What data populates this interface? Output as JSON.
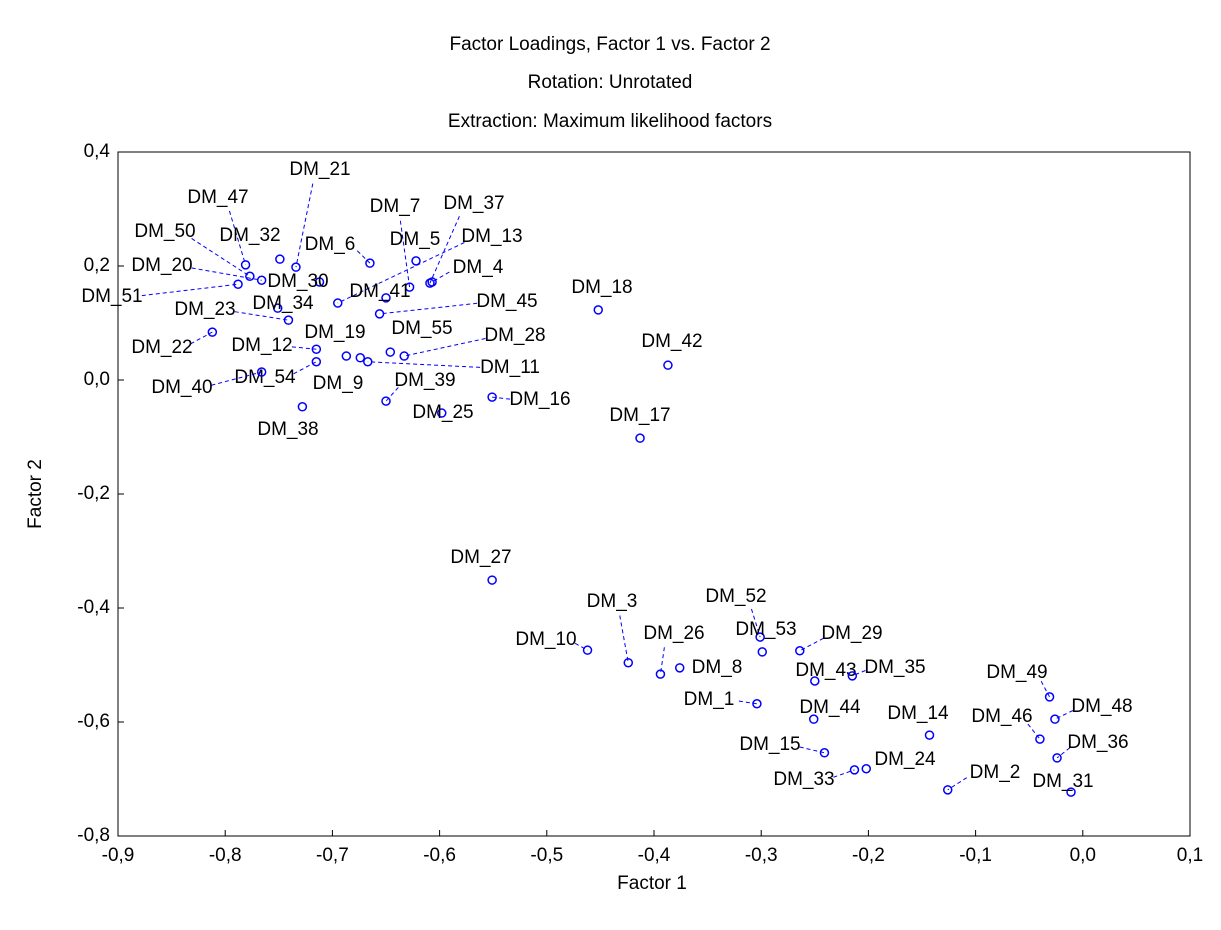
{
  "chart_data": {
    "type": "scatter",
    "title": "Factor Loadings, Factor 1 vs. Factor 2",
    "subtitle": [
      "Rotation: Unrotated",
      "Extraction: Maximum likelihood factors"
    ],
    "x_label": "Factor 1",
    "y_label": "Factor 2",
    "color": "#0000ff",
    "xlim": [
      -0.9,
      0.1
    ],
    "ylim": [
      -0.8,
      0.4
    ],
    "xticks": [
      {
        "value": -0.9,
        "label": "-0,9"
      },
      {
        "value": -0.8,
        "label": "-0,8"
      },
      {
        "value": -0.7,
        "label": "-0,7"
      },
      {
        "value": -0.6,
        "label": "-0,6"
      },
      {
        "value": -0.5,
        "label": "-0,5"
      },
      {
        "value": -0.4,
        "label": "-0,4"
      },
      {
        "value": -0.3,
        "label": "-0,3"
      },
      {
        "value": -0.2,
        "label": "-0,2"
      },
      {
        "value": -0.1,
        "label": "-0,1"
      },
      {
        "value": 0,
        "label": "0,0"
      },
      {
        "value": 0.1,
        "label": "0,1"
      }
    ],
    "yticks": [
      {
        "value": 0.4,
        "label": "0,4"
      },
      {
        "value": 0.2,
        "label": "0,2"
      },
      {
        "value": 0,
        "label": "0,0"
      },
      {
        "value": -0.2,
        "label": "-0,2"
      },
      {
        "value": -0.4,
        "label": "-0,4"
      },
      {
        "value": -0.6,
        "label": "-0,6"
      },
      {
        "value": -0.8,
        "label": "-0,8"
      }
    ],
    "labels": [
      "DM_21",
      "DM_47",
      "DM_32",
      "DM_50",
      "DM_20",
      "DM_51",
      "DM_6",
      "DM_30",
      "DM_7",
      "DM_37",
      "DM_5",
      "DM_13",
      "DM_4",
      "DM_41",
      "DM_34",
      "DM_23",
      "DM_22",
      "DM_45",
      "DM_55",
      "DM_28",
      "DM_11",
      "DM_19",
      "DM_12",
      "DM_54",
      "DM_40",
      "DM_9",
      "DM_39",
      "DM_38",
      "DM_25",
      "DM_16",
      "DM_18",
      "DM_42",
      "DM_17",
      "DM_27",
      "DM_10",
      "DM_3",
      "DM_26",
      "DM_8",
      "DM_52",
      "DM_53",
      "DM_29",
      "DM_43",
      "DM_35",
      "DM_1",
      "DM_44",
      "DM_15",
      "DM_33",
      "DM_24",
      "DM_14",
      "DM_2",
      "DM_49",
      "DM_48",
      "DM_46",
      "DM_36",
      "DM_31"
    ],
    "x": [
      -0.734,
      -0.781,
      -0.749,
      -0.777,
      -0.766,
      -0.788,
      -0.665,
      -0.712,
      -0.628,
      -0.609,
      -0.622,
      -0.695,
      -0.607,
      -0.65,
      -0.751,
      -0.741,
      -0.812,
      -0.656,
      -0.646,
      -0.633,
      -0.667,
      -0.687,
      -0.715,
      -0.715,
      -0.766,
      -0.674,
      -0.65,
      -0.728,
      -0.598,
      -0.551,
      -0.452,
      -0.387,
      -0.413,
      -0.551,
      -0.462,
      -0.424,
      -0.394,
      -0.376,
      -0.301,
      -0.299,
      -0.264,
      -0.25,
      -0.215,
      -0.304,
      -0.251,
      -0.241,
      -0.213,
      -0.202,
      -0.143,
      -0.126,
      -0.031,
      -0.026,
      -0.04,
      -0.024,
      -0.011
    ],
    "y": [
      0.198,
      0.202,
      0.212,
      0.182,
      0.175,
      0.168,
      0.205,
      0.172,
      0.163,
      0.17,
      0.209,
      0.135,
      0.172,
      0.144,
      0.126,
      0.105,
      0.084,
      0.116,
      0.049,
      0.042,
      0.032,
      0.042,
      0.054,
      0.032,
      0.014,
      0.039,
      -0.037,
      -0.047,
      -0.058,
      -0.03,
      0.123,
      0.026,
      -0.102,
      -0.351,
      -0.474,
      -0.496,
      -0.516,
      -0.505,
      -0.451,
      -0.477,
      -0.475,
      -0.528,
      -0.519,
      -0.568,
      -0.595,
      -0.654,
      -0.684,
      -0.682,
      -0.623,
      -0.719,
      -0.556,
      -0.595,
      -0.63,
      -0.663,
      -0.723
    ]
  }
}
